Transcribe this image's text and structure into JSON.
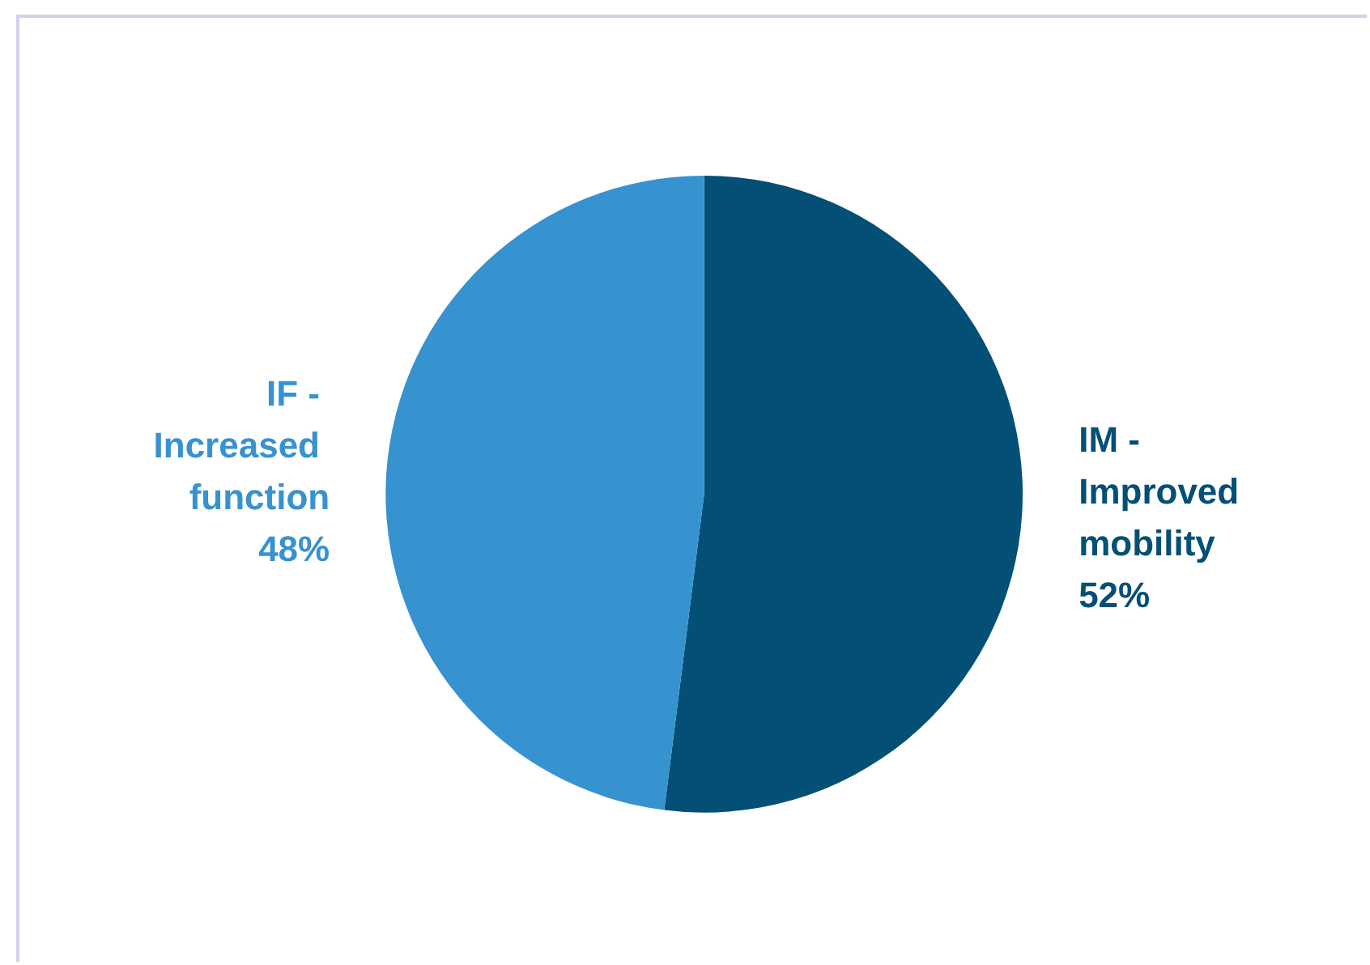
{
  "chart_data": {
    "type": "pie",
    "categories": [
      "IM - Improved mobility",
      "IF - Increased function"
    ],
    "values": [
      52,
      48
    ],
    "value_labels": [
      "52%",
      "48%"
    ],
    "colors": [
      "#044f75",
      "#3792d0"
    ],
    "legend": false
  }
}
